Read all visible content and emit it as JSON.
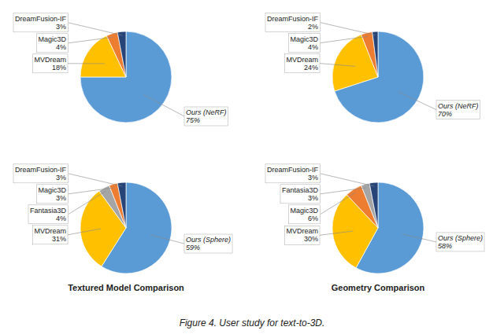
{
  "title": "Figure 4. User study for text-to-3D.",
  "chart_data": [
    {
      "type": "pie",
      "categories": [
        "Ours (NeRF)",
        "MVDream",
        "Magic3D",
        "DreamFusion-IF"
      ],
      "values": [
        75,
        18,
        4,
        3
      ],
      "value_labels": [
        "75%",
        "18%",
        "4%",
        "3%"
      ],
      "colors": [
        "#5B9BD5",
        "#FFC000",
        "#ED7D31",
        "#264478"
      ],
      "data_labels": true
    },
    {
      "type": "pie",
      "categories": [
        "Ours (NeRF)",
        "MVDream",
        "Magic3D",
        "DreamFusion-IF"
      ],
      "values": [
        70,
        24,
        4,
        2
      ],
      "value_labels": [
        "70%",
        "24%",
        "4%",
        "2%"
      ],
      "colors": [
        "#5B9BD5",
        "#FFC000",
        "#ED7D31",
        "#264478"
      ],
      "data_labels": true
    },
    {
      "type": "pie",
      "title": "Textured Model Comparison",
      "categories": [
        "Ours (Sphere)",
        "MVDream",
        "Fantasia3D",
        "Magic3D",
        "DreamFusion-IF"
      ],
      "values": [
        59,
        31,
        4,
        3,
        3
      ],
      "value_labels": [
        "59%",
        "31%",
        "4%",
        "3%",
        "3%"
      ],
      "colors": [
        "#5B9BD5",
        "#FFC000",
        "#A5A5A5",
        "#ED7D31",
        "#264478"
      ],
      "data_labels": true
    },
    {
      "type": "pie",
      "title": "Geometry Comparison",
      "categories": [
        "Ours (Sphere)",
        "MVDream",
        "Magic3D",
        "Fantasia3D",
        "DreamFusion-IF"
      ],
      "values": [
        58,
        30,
        6,
        3,
        3
      ],
      "value_labels": [
        "58%",
        "30%",
        "6%",
        "3%",
        "3%"
      ],
      "colors": [
        "#5B9BD5",
        "#FFC000",
        "#ED7D31",
        "#A5A5A5",
        "#264478"
      ],
      "data_labels": true
    }
  ]
}
